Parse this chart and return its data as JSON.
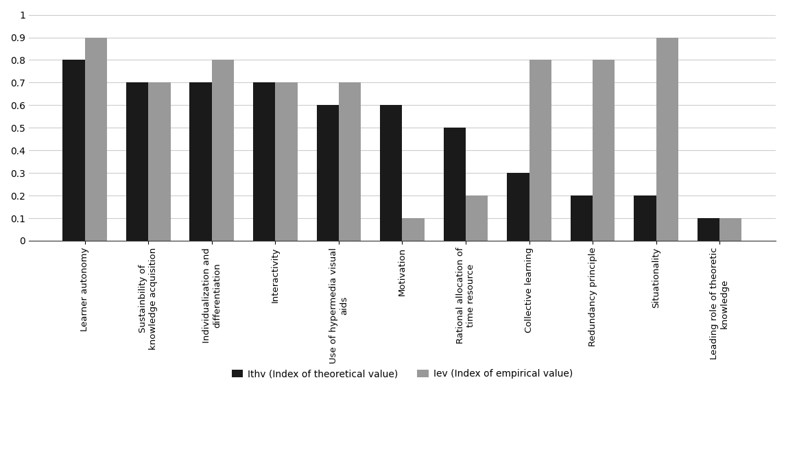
{
  "categories": [
    "Learner autonomy",
    "Sustainbility of\nknowledge acquisition",
    "Individualization and\ndifferentiation",
    "Interactivity",
    "Use of hypermedia visual\naids",
    "Motivation",
    "Rational allocation of\ntime resource",
    "Collective learning",
    "Redundancy principle",
    "Situationality",
    "Leading role of theoretic\nknowledge"
  ],
  "ithv": [
    0.8,
    0.7,
    0.7,
    0.7,
    0.6,
    0.6,
    0.5,
    0.3,
    0.2,
    0.2,
    0.1
  ],
  "iev": [
    0.9,
    0.7,
    0.8,
    0.7,
    0.7,
    0.1,
    0.2,
    0.8,
    0.8,
    0.9,
    0.1
  ],
  "ithv_color": "#1a1a1a",
  "iev_color": "#999999",
  "ithv_label": "Ithv (Index of theoretical value)",
  "iev_label": "Iev (Index of empirical value)",
  "ylim": [
    0,
    1.0
  ],
  "yticks": [
    0,
    0.1,
    0.2,
    0.3,
    0.4,
    0.5,
    0.6,
    0.7,
    0.8,
    0.9,
    1
  ],
  "background_color": "#ffffff",
  "bar_width": 0.35,
  "grid_color": "#cccccc"
}
